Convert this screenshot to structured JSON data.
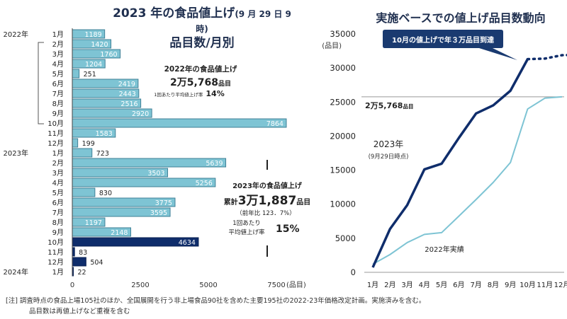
{
  "chart_data": [
    {
      "type": "bar",
      "orientation": "horizontal",
      "title": "2023 年の食品値上げ",
      "title_note": "(9 月 29 日 9 時)",
      "subtitle": "品目数/月別",
      "year_labels": [
        {
          "index": 0,
          "label": "2022年"
        },
        {
          "index": 12,
          "label": "2023年"
        },
        {
          "index": 24,
          "label": "2024年"
        }
      ],
      "categories": [
        "1月",
        "2月",
        "3月",
        "4月",
        "5月",
        "6月",
        "7月",
        "8月",
        "9月",
        "10月",
        "11月",
        "12月",
        "1月",
        "2月",
        "3月",
        "4月",
        "5月",
        "6月",
        "7月",
        "8月",
        "9月",
        "10月",
        "11月",
        "12月",
        "1月"
      ],
      "values": [
        1189,
        1420,
        1760,
        1204,
        251,
        2419,
        2443,
        2516,
        2920,
        7864,
        1583,
        199,
        723,
        5639,
        3503,
        5256,
        830,
        3775,
        3595,
        1197,
        2148,
        4634,
        83,
        504,
        22
      ],
      "value_labels": [
        "1189",
        "1420",
        "1760",
        "1204",
        "251",
        "2419",
        "2443",
        "2516",
        "2920",
        "7864",
        "1583",
        "199",
        "723",
        "5639",
        "3503",
        "5256",
        "830",
        "3775",
        "3595",
        "1197",
        "2148",
        "4634",
        "83",
        "504",
        "22"
      ],
      "series_kind": [
        "actual",
        "actual",
        "actual",
        "actual",
        "actual",
        "actual",
        "actual",
        "actual",
        "actual",
        "actual",
        "actual",
        "actual",
        "actual",
        "actual",
        "actual",
        "actual",
        "actual",
        "actual",
        "actual",
        "actual",
        "actual",
        "planned",
        "planned",
        "planned",
        "planned"
      ],
      "colors": {
        "actual": "#7ec4d4",
        "planned": "#0f2d6b"
      },
      "xticks": [
        "0",
        "2500",
        "5000",
        "7500"
      ],
      "xtick_values": [
        0,
        2500,
        5000,
        7500
      ],
      "xlabel": "(品目)",
      "xlim": [
        0,
        8600
      ],
      "grid": false,
      "annotations": {
        "y2022": {
          "line1": "2022年の食品値上げ",
          "line2_big": "2万5,768",
          "line2_unit": "品目",
          "line3_small": "1回あたり平均値上げ率",
          "line3_big": "14%"
        },
        "y2023": {
          "line1": "2023年の食品値上げ",
          "line2_prefix": "累計",
          "line2_big": "3万1,887",
          "line2_unit": "品目",
          "line3": "（前年比 123．7%）",
          "line4a": "1回あたり",
          "line4b": "平均値上げ率",
          "line4_big": "15%"
        }
      }
    },
    {
      "type": "line",
      "title": "実施ベースでの値上げ品目数動向",
      "ylabel": "(品目)",
      "yticks": [
        "0",
        "5000",
        "10000",
        "15000",
        "20000",
        "25000",
        "30000",
        "35000"
      ],
      "ytick_values": [
        0,
        5000,
        10000,
        15000,
        20000,
        25000,
        30000,
        35000
      ],
      "ylim": [
        0,
        35000
      ],
      "categories": [
        "1月",
        "2月",
        "3月",
        "4月",
        "5月",
        "6月",
        "7月",
        "8月",
        "9月",
        "10月",
        "11月",
        "12月"
      ],
      "series": [
        {
          "name": "2023年",
          "sublabel": "(9月29日時点)",
          "color": "#0f2d6b",
          "values": [
            723,
            6362,
            9865,
            15121,
            15951,
            19726,
            23321,
            24518,
            26666,
            31300
          ],
          "projected_values": [
            31300,
            31383,
            31887,
            31909
          ]
        },
        {
          "name": "2022年実績",
          "color": "#7ec4d4",
          "values": [
            1189,
            2609,
            4369,
            5573,
            5824,
            8243,
            10686,
            13202,
            16122,
            23986,
            25569,
            25768
          ]
        }
      ],
      "reference_line": {
        "value": 25768,
        "label_big": "2万5,768",
        "label_unit": "品目"
      },
      "callout": "10月の値上げで年３万品目到達",
      "grid": false
    }
  ],
  "footnote": {
    "line1": "[注]  調査時点の食品上場105社のほか、全国展開を行う非上場食品90社を含めた主要195社の2022-23年価格改定計画。実施済みを含む。",
    "line2": "品目数は再値上げなど重複を含む"
  }
}
